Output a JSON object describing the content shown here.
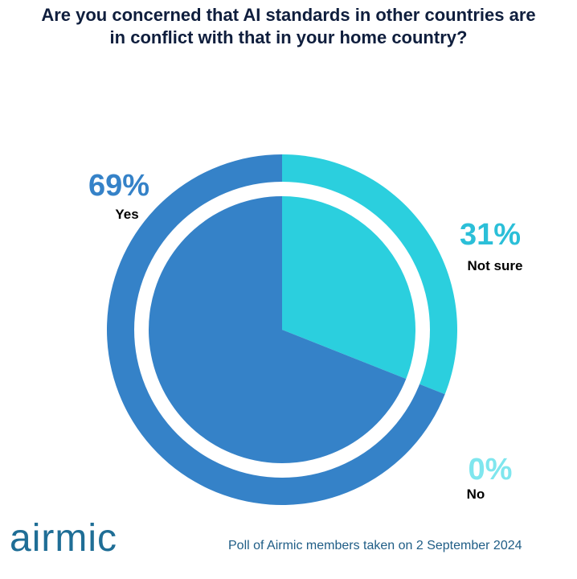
{
  "chart_data": {
    "type": "pie",
    "title": "Are you concerned that AI standards in other countries are in conflict with that in your home country?",
    "slices": [
      {
        "label": "Not sure",
        "value": 31,
        "percent_label": "31%",
        "color": "#2bcfde",
        "label_color": "#2bbfd8"
      },
      {
        "label": "Yes",
        "value": 69,
        "percent_label": "69%",
        "color": "#3582c8",
        "label_color": "#3582c8"
      },
      {
        "label": "No",
        "value": 0,
        "percent_label": "0%",
        "color": "#7fe6ee",
        "label_color": "#7fe6ee"
      }
    ]
  },
  "footer": {
    "logo_text": "airmic",
    "note": "Poll of Airmic members taken on 2 September 2024"
  },
  "colors": {
    "title": "#0f1e3d",
    "brand": "#1f6e96",
    "label_text": "#000000"
  }
}
